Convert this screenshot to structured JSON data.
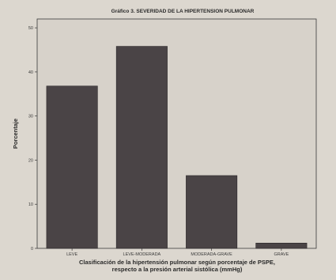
{
  "chart_data": {
    "type": "bar",
    "title": "Gráfico 3. SEVERIDAD DE LA HIPERTENSION PULMONAR",
    "ylabel": "Porcentaje",
    "xlabel_lines": [
      "Clasificación de la hipertensión pulmonar según porcentaje de PSPE,",
      "respecto a la presión arterial sistólica (mmHg)"
    ],
    "categories": [
      "LEVE",
      "LEVE-MODERADA",
      "MODERADA-GRAVE",
      "GRAVE"
    ],
    "values": [
      36.8,
      45.8,
      16.5,
      1.2
    ],
    "yticks": [
      0,
      10,
      20,
      30,
      40,
      50
    ],
    "ylim": [
      0,
      52
    ],
    "grid": false,
    "colors": {
      "bar": "#4a4446",
      "bar_edge": "#2b2729",
      "plot_background": "#d7d2ca",
      "axis": "#3a3a3a"
    }
  }
}
